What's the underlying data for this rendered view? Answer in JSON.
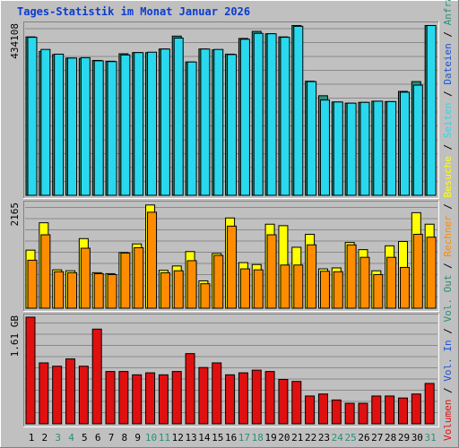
{
  "colors": {
    "outer_bg": "#c0c0c0",
    "panel_bg": "#c0c0c0",
    "title": "#0b3bd1",
    "axis_text": "#000000",
    "grid": "#8a8a8a",
    "hits": "#2a8f7a",
    "files": "#1e54d6",
    "pages": "#2ad8ee",
    "visits": "#ffff00",
    "sites": "#ff8c00",
    "kbytes": "#e01010",
    "kb_in": "#1e54d6",
    "kb_out": "#2a8f7a",
    "weekend": "#2a8f7a",
    "weekday": "#000000"
  },
  "chart_data": {
    "type": "bar",
    "title": "Tages-Statistik im Monat Januar 2026",
    "categories": [
      "1",
      "2",
      "3",
      "4",
      "5",
      "6",
      "7",
      "8",
      "9",
      "10",
      "11",
      "12",
      "13",
      "14",
      "15",
      "16",
      "17",
      "18",
      "19",
      "20",
      "21",
      "22",
      "23",
      "24",
      "25",
      "26",
      "27",
      "28",
      "29",
      "30",
      "31"
    ],
    "weekend_days": [
      "3",
      "4",
      "10",
      "11",
      "17",
      "18",
      "24",
      "25",
      "31"
    ],
    "right_label_parts": [
      {
        "text": "Anfragen",
        "color": "#2a8f7a"
      },
      {
        "text": " / ",
        "color": "#000000"
      },
      {
        "text": "Dateien",
        "color": "#1e54d6"
      },
      {
        "text": " / ",
        "color": "#000000"
      },
      {
        "text": "Seiten",
        "color": "#2ad8ee"
      },
      {
        "text": " / ",
        "color": "#000000"
      },
      {
        "text": "Besuche",
        "color": "#ffff00"
      },
      {
        "text": " / ",
        "color": "#000000"
      },
      {
        "text": "Rechner",
        "color": "#ff8c00"
      },
      {
        "text": " / ",
        "color": "#000000"
      },
      {
        "text": "Vol. Out",
        "color": "#2a8f7a"
      },
      {
        "text": " / ",
        "color": "#000000"
      },
      {
        "text": "Vol. In",
        "color": "#1e54d6"
      },
      {
        "text": " / ",
        "color": "#000000"
      },
      {
        "text": "Volumen",
        "color": "#e01010"
      }
    ],
    "panels": [
      {
        "key": "hits_pages",
        "ylabel": "434108",
        "ymax": 434108,
        "series": [
          {
            "name": "Anfragen",
            "color": "#2a8f7a",
            "values": [
              404000,
              367000,
              359000,
              350000,
              349000,
              344000,
              342000,
              361000,
              364000,
              364000,
              373000,
              406000,
              340000,
              373000,
              371000,
              360000,
              400000,
              418000,
              412000,
              404000,
              433000,
              291000,
              254000,
              238000,
              235000,
              237000,
              240000,
              239000,
              265000,
              290000,
              433000
            ]
          },
          {
            "name": "Seiten",
            "color": "#2ad8ee",
            "values": [
              403000,
              372000,
              360000,
              350000,
              351000,
              343000,
              341000,
              358000,
              364000,
              365000,
              373000,
              401000,
              340000,
              373000,
              372000,
              359000,
              398000,
              413000,
              412000,
              403000,
              431000,
              290000,
              243000,
              238000,
              235000,
              237000,
              240000,
              239000,
              263000,
              281000,
              433000
            ]
          }
        ]
      },
      {
        "key": "visits_sites",
        "ylabel": "2165",
        "ymax": 2165,
        "series": [
          {
            "name": "Besuche",
            "color": "#ffff00",
            "values": [
              1210,
              1780,
              800,
              780,
              1450,
              740,
              720,
              1160,
              1340,
              2150,
              790,
              880,
              1180,
              570,
              1140,
              1880,
              950,
              910,
              1750,
              1720,
              1270,
              1540,
              820,
              840,
              1370,
              1220,
              780,
              1300,
              1390,
              1990,
              1750
            ]
          },
          {
            "name": "Rechner",
            "color": "#ff8c00",
            "values": [
              1000,
              1530,
              760,
              740,
              1250,
              720,
              700,
              1150,
              1260,
              2000,
              740,
              780,
              990,
              510,
              1100,
              1710,
              820,
              800,
              1530,
              900,
              900,
              1320,
              770,
              760,
              1320,
              1060,
              700,
              1060,
              850,
              1540,
              1480
            ]
          }
        ]
      },
      {
        "key": "kbytes",
        "ylabel": "1.61 GB",
        "ymax": 1.61,
        "series": [
          {
            "name": "Volumen",
            "color": "#e01010",
            "values": [
              1.61,
              0.92,
              0.87,
              0.98,
              0.87,
              1.43,
              0.79,
              0.79,
              0.74,
              0.77,
              0.74,
              0.79,
              1.06,
              0.85,
              0.92,
              0.74,
              0.77,
              0.81,
              0.79,
              0.67,
              0.64,
              0.42,
              0.45,
              0.36,
              0.31,
              0.31,
              0.42,
              0.42,
              0.39,
              0.45,
              0.61
            ]
          }
        ]
      }
    ]
  }
}
